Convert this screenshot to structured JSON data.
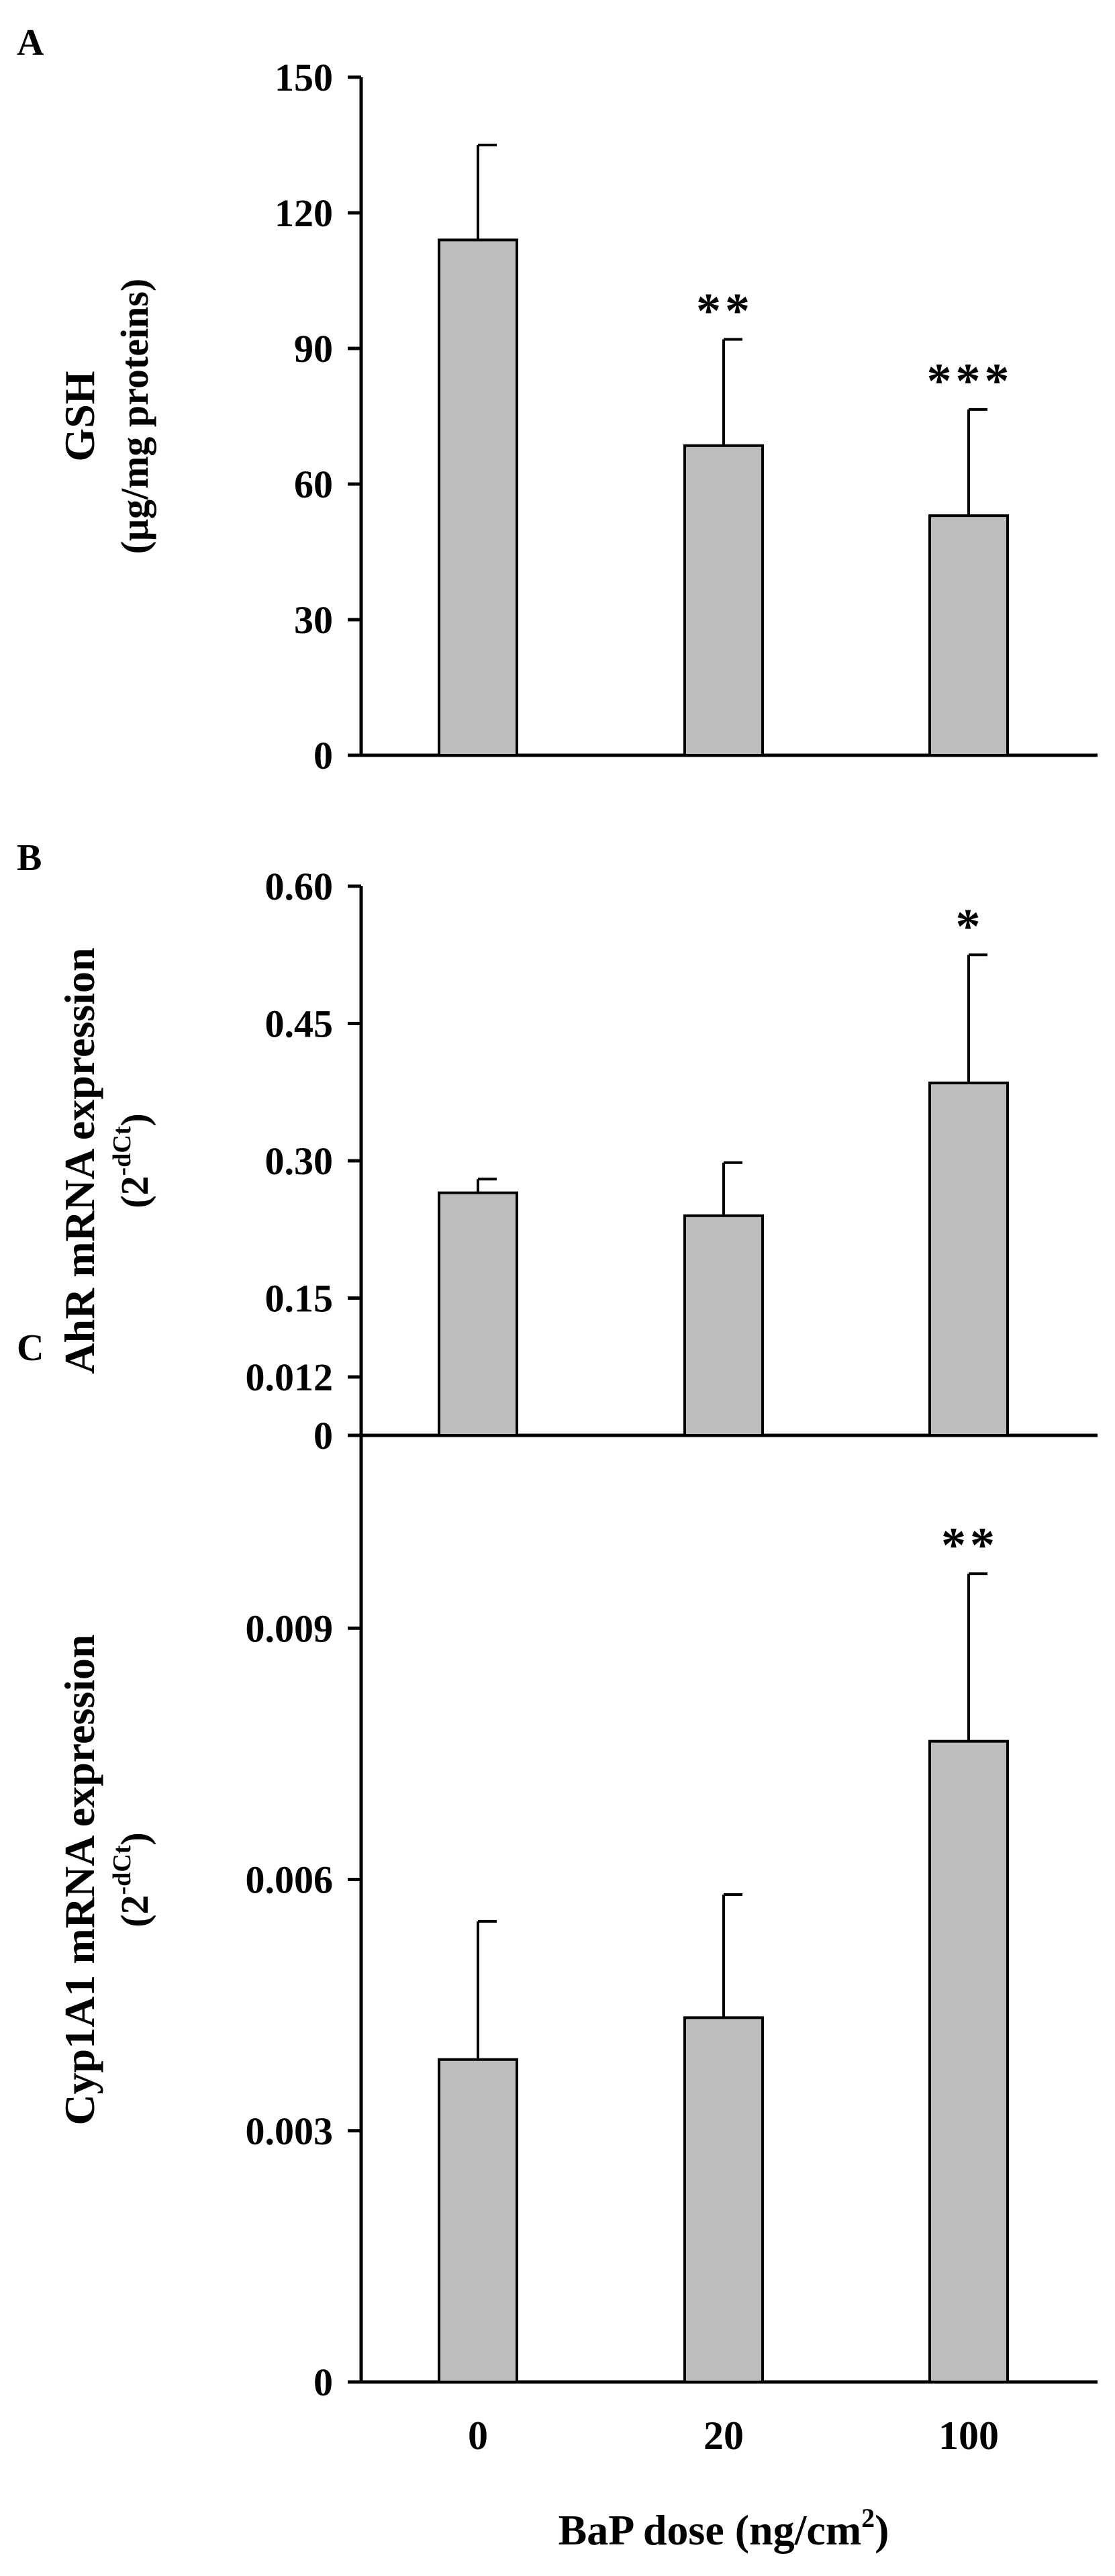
{
  "figure": {
    "xlabel_main": "BaP dose (ng/cm",
    "xlabel_sup": "2",
    "xlabel_close": ")"
  },
  "colors": {
    "bar_fill": "#bdbdbd",
    "bar_stroke": "#000000",
    "axis": "#000000",
    "text": "#000000"
  },
  "chart_data": [
    {
      "type": "bar",
      "panel_letter": "A",
      "title": "",
      "categories": [
        "0",
        "20",
        "100"
      ],
      "values": [
        114,
        68.5,
        53
      ],
      "errors": [
        21,
        23.5,
        23.5
      ],
      "significance": [
        "",
        "**",
        "***"
      ],
      "ylabel_main": "GSH",
      "ylabel_sub": "(μg/mg proteins)",
      "ylabel_sup": "",
      "ylabel_close": "",
      "ylim": [
        0,
        150
      ],
      "yticks": [
        0,
        30,
        60,
        90,
        120,
        150
      ],
      "ytick_labels": [
        "0",
        "30",
        "60",
        "90",
        "120",
        "150"
      ],
      "xlabel": "",
      "show_xtick_labels": false,
      "grid": false,
      "legend": "none"
    },
    {
      "type": "bar",
      "panel_letter": "B",
      "title": "",
      "categories": [
        "0",
        "20",
        "100"
      ],
      "values": [
        0.265,
        0.24,
        0.385
      ],
      "errors": [
        0.015,
        0.058,
        0.14
      ],
      "significance": [
        "",
        "",
        "*"
      ],
      "ylabel_main": "AhR mRNA expression",
      "ylabel_sub": "(2",
      "ylabel_sup": "-dCt",
      "ylabel_close": ")",
      "ylim": [
        0,
        0.6
      ],
      "yticks": [
        0,
        0.15,
        0.3,
        0.45,
        0.6
      ],
      "ytick_labels": [
        "0",
        "0.15",
        "0.30",
        "0.45",
        "0.60"
      ],
      "xlabel": "",
      "show_xtick_labels": false,
      "grid": false,
      "legend": "none"
    },
    {
      "type": "bar",
      "panel_letter": "C",
      "title": "",
      "categories": [
        "0",
        "20",
        "100"
      ],
      "values": [
        0.00385,
        0.00435,
        0.00765
      ],
      "errors": [
        0.00165,
        0.00147,
        0.002
      ],
      "significance": [
        "",
        "",
        "**"
      ],
      "ylabel_main": "Cyp1A1 mRNA expression",
      "ylabel_sub": "(2",
      "ylabel_sup": "-dCt",
      "ylabel_close": ")",
      "ylim": [
        0,
        0.012
      ],
      "yticks": [
        0,
        0.003,
        0.006,
        0.009,
        0.012
      ],
      "ytick_labels": [
        "0",
        "0.003",
        "0.006",
        "0.009",
        "0.012"
      ],
      "xlabel": "BaP dose (ng/cm²)",
      "show_xtick_labels": true,
      "grid": false,
      "legend": "none"
    }
  ]
}
